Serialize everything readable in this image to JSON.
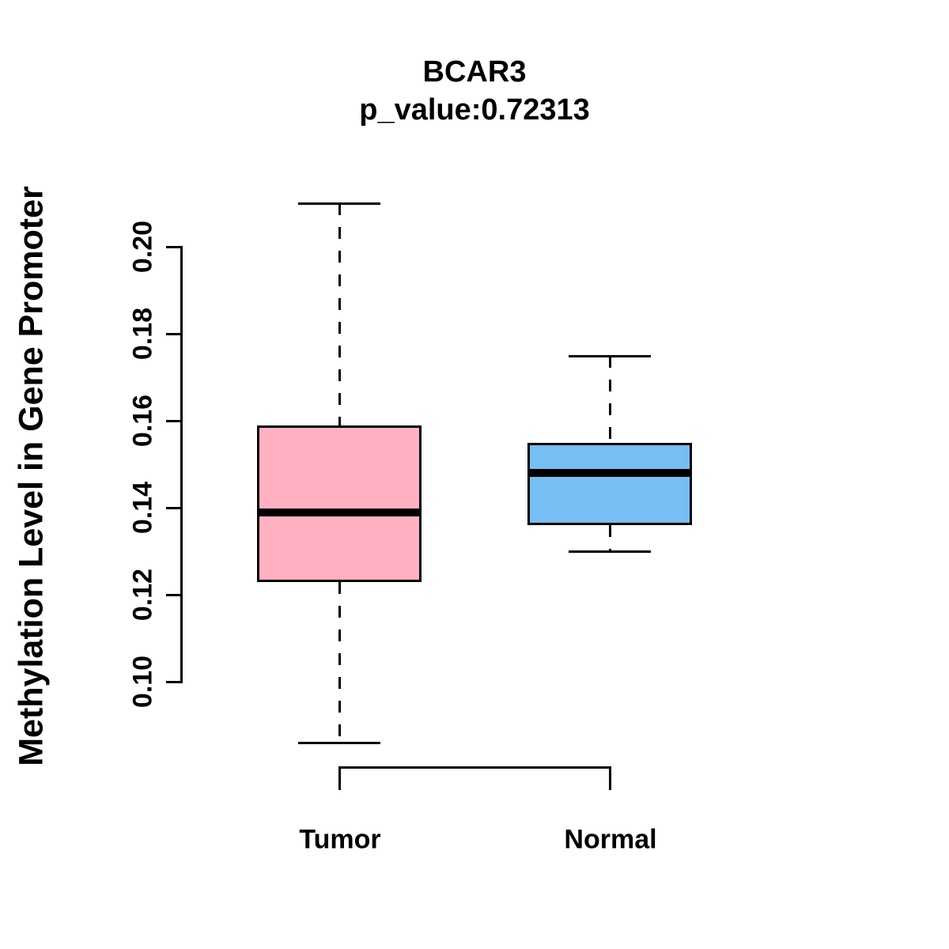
{
  "chart_data": {
    "type": "boxplot",
    "title": "BCAR3",
    "subtitle": "p_value:0.72313",
    "p_value": 0.72313,
    "ylabel": "Methylation Level in Gene Promoter",
    "yticks": [
      0.1,
      0.12,
      0.14,
      0.16,
      0.18,
      0.2
    ],
    "ylim": [
      0.086,
      0.211
    ],
    "grid": false,
    "legend": "none",
    "categories": [
      "Tumor",
      "Normal"
    ],
    "series": [
      {
        "name": "Tumor",
        "color": "#FFB1C1",
        "whisker_low": 0.086,
        "q1": 0.123,
        "median": 0.139,
        "q3": 0.159,
        "whisker_high": 0.21
      },
      {
        "name": "Normal",
        "color": "#76BEF4",
        "whisker_low": 0.13,
        "q1": 0.136,
        "median": 0.148,
        "q3": 0.155,
        "whisker_high": 0.175
      }
    ]
  }
}
